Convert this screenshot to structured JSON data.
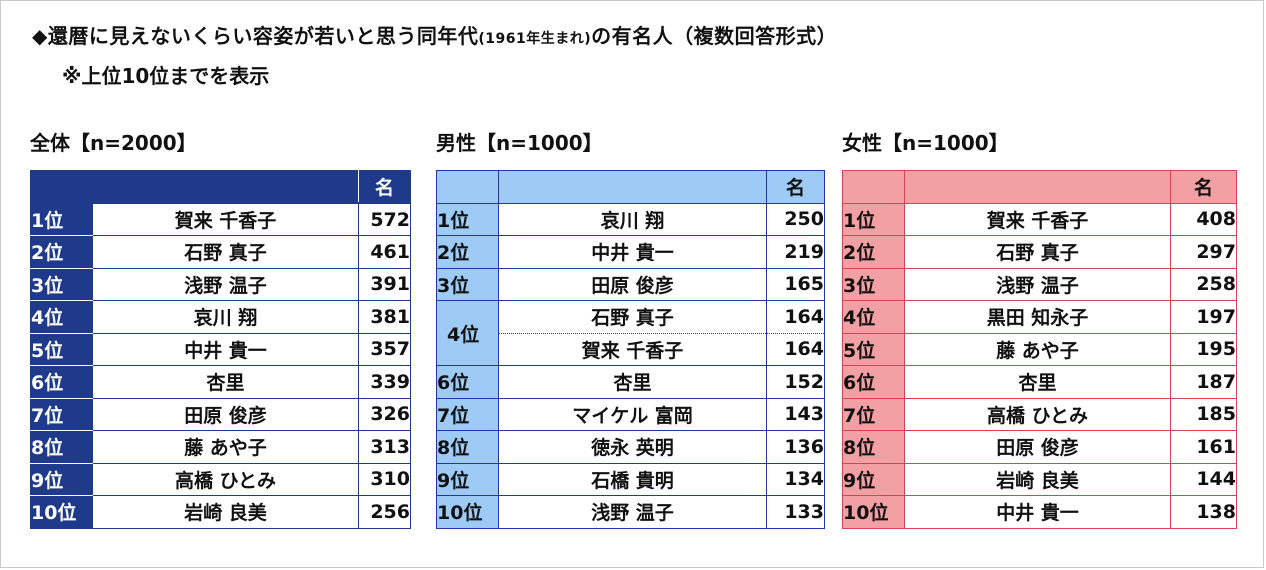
{
  "title": {
    "main_before": "◆還暦に見えないくらい容姿が若いと思う同年代",
    "main_small": "(1961年生まれ)",
    "main_after": "の有名人（複数回答形式）",
    "note": "※上位10位までを表示"
  },
  "sections": {
    "all": {
      "label": "全体【n=2000】",
      "header_unit": "名",
      "rows": [
        {
          "rank": "1位",
          "name": "賀来 千香子",
          "value": "572"
        },
        {
          "rank": "2位",
          "name": "石野 真子",
          "value": "461"
        },
        {
          "rank": "3位",
          "name": "浅野 温子",
          "value": "391"
        },
        {
          "rank": "4位",
          "name": "哀川 翔",
          "value": "381"
        },
        {
          "rank": "5位",
          "name": "中井 貴一",
          "value": "357"
        },
        {
          "rank": "6位",
          "name": "杏里",
          "value": "339"
        },
        {
          "rank": "7位",
          "name": "田原 俊彦",
          "value": "326"
        },
        {
          "rank": "8位",
          "name": "藤 あや子",
          "value": "313"
        },
        {
          "rank": "9位",
          "name": "高橋 ひとみ",
          "value": "310"
        },
        {
          "rank": "10位",
          "name": "岩崎 良美",
          "value": "256"
        }
      ]
    },
    "male": {
      "label": "男性【n=1000】",
      "header_unit": "名",
      "rows": [
        {
          "rank": "1位",
          "name": "哀川 翔",
          "value": "250"
        },
        {
          "rank": "2位",
          "name": "中井 貴一",
          "value": "219"
        },
        {
          "rank": "3位",
          "name": "田原 俊彦",
          "value": "165"
        },
        {
          "rank": "4位",
          "name": "石野 真子",
          "value": "164"
        },
        {
          "rank": "",
          "name": "賀来 千香子",
          "value": "164"
        },
        {
          "rank": "6位",
          "name": "杏里",
          "value": "152"
        },
        {
          "rank": "7位",
          "name": "マイケル 富岡",
          "value": "143"
        },
        {
          "rank": "8位",
          "name": "徳永 英明",
          "value": "136"
        },
        {
          "rank": "9位",
          "name": "石橋 貴明",
          "value": "134"
        },
        {
          "rank": "10位",
          "name": "浅野 温子",
          "value": "133"
        }
      ]
    },
    "female": {
      "label": "女性【n=1000】",
      "header_unit": "名",
      "rows": [
        {
          "rank": "1位",
          "name": "賀来 千香子",
          "value": "408"
        },
        {
          "rank": "2位",
          "name": "石野 真子",
          "value": "297"
        },
        {
          "rank": "3位",
          "name": "浅野 温子",
          "value": "258"
        },
        {
          "rank": "4位",
          "name": "黒田 知永子",
          "value": "197"
        },
        {
          "rank": "5位",
          "name": "藤 あや子",
          "value": "195"
        },
        {
          "rank": "6位",
          "name": "杏里",
          "value": "187"
        },
        {
          "rank": "7位",
          "name": "高橋 ひとみ",
          "value": "185"
        },
        {
          "rank": "8位",
          "name": "田原 俊彦",
          "value": "161"
        },
        {
          "rank": "9位",
          "name": "岩崎 良美",
          "value": "144"
        },
        {
          "rank": "10位",
          "name": "中井 貴一",
          "value": "138"
        }
      ]
    }
  },
  "colors": {
    "all_header": "#1f3a8a",
    "male_header": "#9ecbf5",
    "female_header": "#f3a0a4",
    "male_border": "#2436a8",
    "female_border": "#d64458"
  }
}
